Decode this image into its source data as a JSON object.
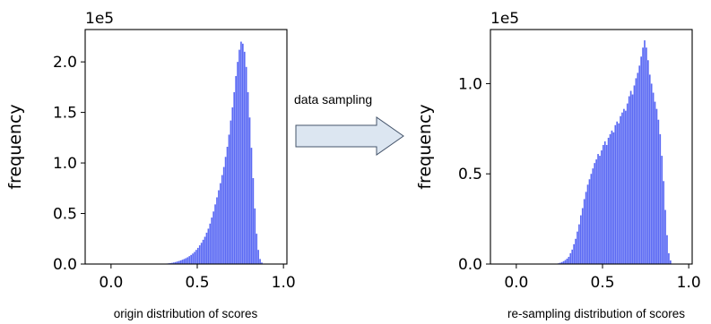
{
  "arrow": {
    "label": "data sampling"
  },
  "chart_data": [
    {
      "type": "histogram",
      "title": "",
      "xlabel": "origin distribution of scores",
      "ylabel": "frequency",
      "y_offset_text": "1e5",
      "xlim": [
        -0.15,
        1.02
      ],
      "ylim": [
        0,
        2.32
      ],
      "xticks": [
        0.0,
        0.5,
        1.0
      ],
      "xtick_labels": [
        "0.0",
        "0.5",
        "1.0"
      ],
      "yticks": [
        0.0,
        0.5,
        1.0,
        1.5,
        2.0
      ],
      "ytick_labels": [
        "0.0",
        "0.5",
        "1.0",
        "1.5",
        "2.0"
      ],
      "grid": false,
      "bar_color": "#5b6af4",
      "bin_width": 0.01,
      "x": [
        0.0,
        0.01,
        0.02,
        0.03,
        0.04,
        0.05,
        0.06,
        0.07,
        0.08,
        0.09,
        0.1,
        0.11,
        0.12,
        0.13,
        0.14,
        0.15,
        0.16,
        0.17,
        0.18,
        0.19,
        0.2,
        0.21,
        0.22,
        0.23,
        0.24,
        0.25,
        0.26,
        0.27,
        0.28,
        0.29,
        0.3,
        0.31,
        0.32,
        0.33,
        0.34,
        0.35,
        0.36,
        0.37,
        0.38,
        0.39,
        0.4,
        0.41,
        0.42,
        0.43,
        0.44,
        0.45,
        0.46,
        0.47,
        0.48,
        0.49,
        0.5,
        0.51,
        0.52,
        0.53,
        0.54,
        0.55,
        0.56,
        0.57,
        0.58,
        0.59,
        0.6,
        0.61,
        0.62,
        0.63,
        0.64,
        0.65,
        0.66,
        0.67,
        0.68,
        0.69,
        0.7,
        0.71,
        0.72,
        0.73,
        0.74,
        0.75,
        0.76,
        0.77,
        0.78,
        0.79,
        0.8,
        0.81,
        0.82,
        0.83,
        0.84,
        0.85,
        0.86,
        0.87,
        0.88,
        0.89,
        0.9,
        0.91,
        0.92,
        0.93,
        0.94,
        0.95,
        0.96,
        0.97,
        0.98,
        0.99
      ],
      "values": [
        0,
        0,
        0,
        0,
        0,
        0,
        0,
        0,
        0,
        0,
        0,
        0,
        0,
        0,
        0,
        0,
        0,
        0,
        0,
        0,
        0,
        0,
        0,
        0,
        0,
        0,
        0,
        0,
        0,
        0,
        0.002,
        0.003,
        0.005,
        0.007,
        0.009,
        0.012,
        0.016,
        0.02,
        0.025,
        0.03,
        0.036,
        0.043,
        0.05,
        0.058,
        0.067,
        0.078,
        0.09,
        0.104,
        0.12,
        0.14,
        0.16,
        0.185,
        0.21,
        0.24,
        0.27,
        0.31,
        0.35,
        0.4,
        0.46,
        0.52,
        0.59,
        0.66,
        0.73,
        0.8,
        0.88,
        0.96,
        1.06,
        1.16,
        1.28,
        1.42,
        1.55,
        1.7,
        1.86,
        2.0,
        2.12,
        2.2,
        2.18,
        2.1,
        1.95,
        1.7,
        1.45,
        1.15,
        0.85,
        0.55,
        0.3,
        0.14,
        0.05,
        0.015,
        0.003,
        0,
        0,
        0,
        0,
        0,
        0,
        0,
        0,
        0,
        0,
        0
      ]
    },
    {
      "type": "histogram",
      "title": "",
      "xlabel": "re-sampling distribution of scores",
      "ylabel": "frequency",
      "y_offset_text": "1e5",
      "xlim": [
        -0.15,
        1.02
      ],
      "ylim": [
        0,
        1.3
      ],
      "xticks": [
        0.0,
        0.5,
        1.0
      ],
      "xtick_labels": [
        "0.0",
        "0.5",
        "1.0"
      ],
      "yticks": [
        0.0,
        0.5,
        1.0
      ],
      "ytick_labels": [
        "0.0",
        "0.5",
        "1.0"
      ],
      "grid": false,
      "bar_color": "#5b6af4",
      "bin_width": 0.01,
      "x": [
        0.0,
        0.01,
        0.02,
        0.03,
        0.04,
        0.05,
        0.06,
        0.07,
        0.08,
        0.09,
        0.1,
        0.11,
        0.12,
        0.13,
        0.14,
        0.15,
        0.16,
        0.17,
        0.18,
        0.19,
        0.2,
        0.21,
        0.22,
        0.23,
        0.24,
        0.25,
        0.26,
        0.27,
        0.28,
        0.29,
        0.3,
        0.31,
        0.32,
        0.33,
        0.34,
        0.35,
        0.36,
        0.37,
        0.38,
        0.39,
        0.4,
        0.41,
        0.42,
        0.43,
        0.44,
        0.45,
        0.46,
        0.47,
        0.48,
        0.49,
        0.5,
        0.51,
        0.52,
        0.53,
        0.54,
        0.55,
        0.56,
        0.57,
        0.58,
        0.59,
        0.6,
        0.61,
        0.62,
        0.63,
        0.64,
        0.65,
        0.66,
        0.67,
        0.68,
        0.69,
        0.7,
        0.71,
        0.72,
        0.73,
        0.74,
        0.75,
        0.76,
        0.77,
        0.78,
        0.79,
        0.8,
        0.81,
        0.82,
        0.83,
        0.84,
        0.85,
        0.86,
        0.87,
        0.88,
        0.89,
        0.9,
        0.91,
        0.92,
        0.93,
        0.94,
        0.95,
        0.96,
        0.97,
        0.98,
        0.99
      ],
      "values": [
        0,
        0,
        0,
        0,
        0,
        0,
        0,
        0,
        0,
        0,
        0,
        0,
        0,
        0,
        0,
        0,
        0,
        0,
        0,
        0,
        0,
        0,
        0,
        0.002,
        0.004,
        0.007,
        0.011,
        0.016,
        0.022,
        0.03,
        0.04,
        0.06,
        0.08,
        0.11,
        0.14,
        0.18,
        0.22,
        0.27,
        0.31,
        0.36,
        0.4,
        0.44,
        0.47,
        0.5,
        0.53,
        0.56,
        0.58,
        0.61,
        0.6,
        0.63,
        0.66,
        0.68,
        0.66,
        0.7,
        0.72,
        0.74,
        0.73,
        0.77,
        0.79,
        0.78,
        0.82,
        0.84,
        0.86,
        0.85,
        0.89,
        0.93,
        0.96,
        0.94,
        0.99,
        1.03,
        1.06,
        1.1,
        1.15,
        1.2,
        1.24,
        1.2,
        1.13,
        1.05,
        1.0,
        0.95,
        0.9,
        0.86,
        0.8,
        0.72,
        0.6,
        0.46,
        0.3,
        0.16,
        0.06,
        0.02,
        0,
        0,
        0,
        0,
        0,
        0,
        0,
        0,
        0,
        0
      ]
    }
  ]
}
